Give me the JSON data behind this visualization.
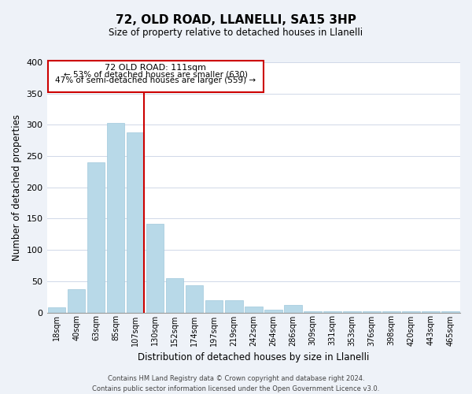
{
  "title": "72, OLD ROAD, LLANELLI, SA15 3HP",
  "subtitle": "Size of property relative to detached houses in Llanelli",
  "xlabel": "Distribution of detached houses by size in Llanelli",
  "ylabel": "Number of detached properties",
  "bin_labels": [
    "18sqm",
    "40sqm",
    "63sqm",
    "85sqm",
    "107sqm",
    "130sqm",
    "152sqm",
    "174sqm",
    "197sqm",
    "219sqm",
    "242sqm",
    "264sqm",
    "286sqm",
    "309sqm",
    "331sqm",
    "353sqm",
    "376sqm",
    "398sqm",
    "420sqm",
    "443sqm",
    "465sqm"
  ],
  "bar_values": [
    8,
    37,
    240,
    303,
    288,
    142,
    55,
    43,
    20,
    20,
    10,
    5,
    12,
    2,
    2,
    2,
    2,
    2,
    2,
    2,
    2
  ],
  "bar_color": "#b8d9e8",
  "bar_edge_color": "#a0c8db",
  "vline_color": "#cc0000",
  "ylim": [
    0,
    400
  ],
  "yticks": [
    0,
    50,
    100,
    150,
    200,
    250,
    300,
    350,
    400
  ],
  "annotation_text_line1": "72 OLD ROAD: 111sqm",
  "annotation_text_line2": "← 53% of detached houses are smaller (630)",
  "annotation_text_line3": "47% of semi-detached houses are larger (559) →",
  "footer_line1": "Contains HM Land Registry data © Crown copyright and database right 2024.",
  "footer_line2": "Contains public sector information licensed under the Open Government Licence v3.0.",
  "background_color": "#eef2f8",
  "plot_bg_color": "#ffffff",
  "grid_color": "#d0d8e8"
}
